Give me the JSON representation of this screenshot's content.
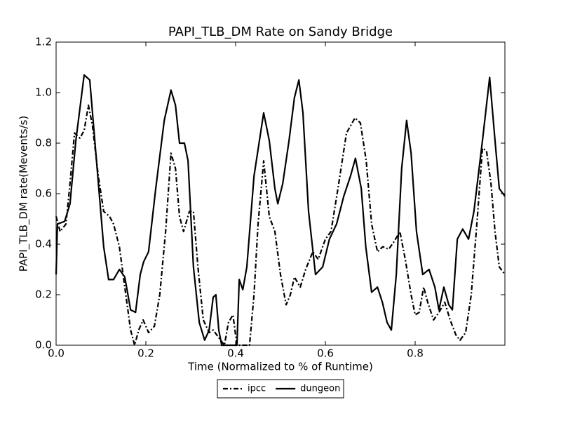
{
  "chart_data": {
    "type": "line",
    "title": "PAPI_TLB_DM Rate on Sandy Bridge",
    "x_label": "Time (Normalized to % of Runtime)",
    "y_label": "PAPI_TLB_DM rate(Mevents/s)",
    "xlim": [
      0,
      1
    ],
    "ylim": [
      0,
      1.2
    ],
    "xticks": [
      {
        "value": 0,
        "label": "0.0"
      },
      0.2,
      0.4,
      0.6,
      0.8
    ],
    "yticks": [
      {
        "value": 0,
        "label": "0.0"
      },
      0.2,
      0.4,
      0.6,
      0.8,
      {
        "value": 1,
        "label": "1.0"
      },
      1.2
    ],
    "grid": false,
    "legend": "bottom",
    "series": [
      {
        "name": "ipcc",
        "color": "#000000",
        "linestyle": "dashdot",
        "x": [
          0,
          0.009,
          0.022,
          0.031,
          0.041,
          0.053,
          0.0625,
          0.072,
          0.081,
          0.094,
          0.106,
          0.119,
          0.128,
          0.141,
          0.153,
          0.166,
          0.175,
          0.184,
          0.194,
          0.206,
          0.219,
          0.231,
          0.244,
          0.256,
          0.266,
          0.275,
          0.284,
          0.297,
          0.306,
          0.316,
          0.328,
          0.341,
          0.35,
          0.3625,
          0.375,
          0.384,
          0.394,
          0.403,
          0.431,
          0.441,
          0.45,
          0.4625,
          0.475,
          0.4875,
          0.5,
          0.5125,
          0.522,
          0.531,
          0.544,
          0.556,
          0.572,
          0.584,
          0.6,
          0.6125,
          0.628,
          0.647,
          0.666,
          0.678,
          0.691,
          0.703,
          0.716,
          0.728,
          0.741,
          0.753,
          0.766,
          0.778,
          0.791,
          0.8,
          0.809,
          0.819,
          0.828,
          0.841,
          0.853,
          0.866,
          0.878,
          0.891,
          0.9,
          0.9125,
          0.925,
          0.9375,
          0.95,
          0.959,
          0.969,
          0.978,
          0.9875,
          1.0
        ],
        "values": [
          0.51,
          0.45,
          0.48,
          0.64,
          0.84,
          0.82,
          0.85,
          0.95,
          0.87,
          0.67,
          0.53,
          0.51,
          0.48,
          0.39,
          0.23,
          0.06,
          0,
          0.06,
          0.1,
          0.05,
          0.075,
          0.2,
          0.45,
          0.76,
          0.7,
          0.51,
          0.45,
          0.53,
          0.53,
          0.31,
          0.1,
          0.05,
          0.06,
          0.03,
          0,
          0.09,
          0.12,
          0,
          0,
          0.2,
          0.48,
          0.73,
          0.51,
          0.45,
          0.28,
          0.16,
          0.2,
          0.27,
          0.23,
          0.3,
          0.37,
          0.34,
          0.42,
          0.45,
          0.62,
          0.84,
          0.9,
          0.88,
          0.73,
          0.48,
          0.37,
          0.39,
          0.38,
          0.41,
          0.45,
          0.34,
          0.2,
          0.12,
          0.13,
          0.23,
          0.17,
          0.1,
          0.13,
          0.17,
          0.1,
          0.04,
          0.02,
          0.05,
          0.2,
          0.48,
          0.78,
          0.77,
          0.64,
          0.45,
          0.31,
          0.28
        ]
      },
      {
        "name": "dungeon",
        "color": "#000000",
        "linestyle": "solid",
        "x": [
          0,
          0.003,
          0.019,
          0.031,
          0.044,
          0.0625,
          0.075,
          0.09,
          0.106,
          0.117,
          0.128,
          0.141,
          0.153,
          0.166,
          0.177,
          0.1875,
          0.195,
          0.206,
          0.222,
          0.241,
          0.256,
          0.266,
          0.275,
          0.286,
          0.294,
          0.306,
          0.319,
          0.331,
          0.341,
          0.35,
          0.356,
          0.3625,
          0.369,
          0.403,
          0.408,
          0.416,
          0.425,
          0.441,
          0.4625,
          0.475,
          0.4875,
          0.494,
          0.505,
          0.519,
          0.531,
          0.541,
          0.55,
          0.5625,
          0.578,
          0.594,
          0.609,
          0.625,
          0.641,
          0.656,
          0.667,
          0.68,
          0.69,
          0.703,
          0.716,
          0.727,
          0.7375,
          0.747,
          0.758,
          0.77,
          0.781,
          0.791,
          0.803,
          0.817,
          0.831,
          0.844,
          0.853,
          0.864,
          0.875,
          0.883,
          0.894,
          0.906,
          0.919,
          0.931,
          0.95,
          0.966,
          0.978,
          0.9875,
          1.0
        ],
        "values": [
          0.28,
          0.48,
          0.49,
          0.56,
          0.81,
          1.07,
          1.05,
          0.73,
          0.39,
          0.26,
          0.26,
          0.3,
          0.27,
          0.14,
          0.13,
          0.28,
          0.33,
          0.37,
          0.62,
          0.89,
          1.01,
          0.95,
          0.8,
          0.8,
          0.73,
          0.31,
          0.09,
          0.02,
          0.06,
          0.19,
          0.2,
          0.06,
          0,
          0,
          0.26,
          0.22,
          0.31,
          0.67,
          0.92,
          0.81,
          0.62,
          0.56,
          0.64,
          0.81,
          0.98,
          1.05,
          0.92,
          0.53,
          0.28,
          0.31,
          0.42,
          0.48,
          0.59,
          0.67,
          0.74,
          0.62,
          0.39,
          0.21,
          0.23,
          0.17,
          0.09,
          0.06,
          0.28,
          0.7,
          0.89,
          0.76,
          0.45,
          0.28,
          0.3,
          0.23,
          0.14,
          0.23,
          0.16,
          0.14,
          0.42,
          0.46,
          0.42,
          0.53,
          0.81,
          1.06,
          0.81,
          0.62,
          0.59
        ]
      }
    ]
  }
}
